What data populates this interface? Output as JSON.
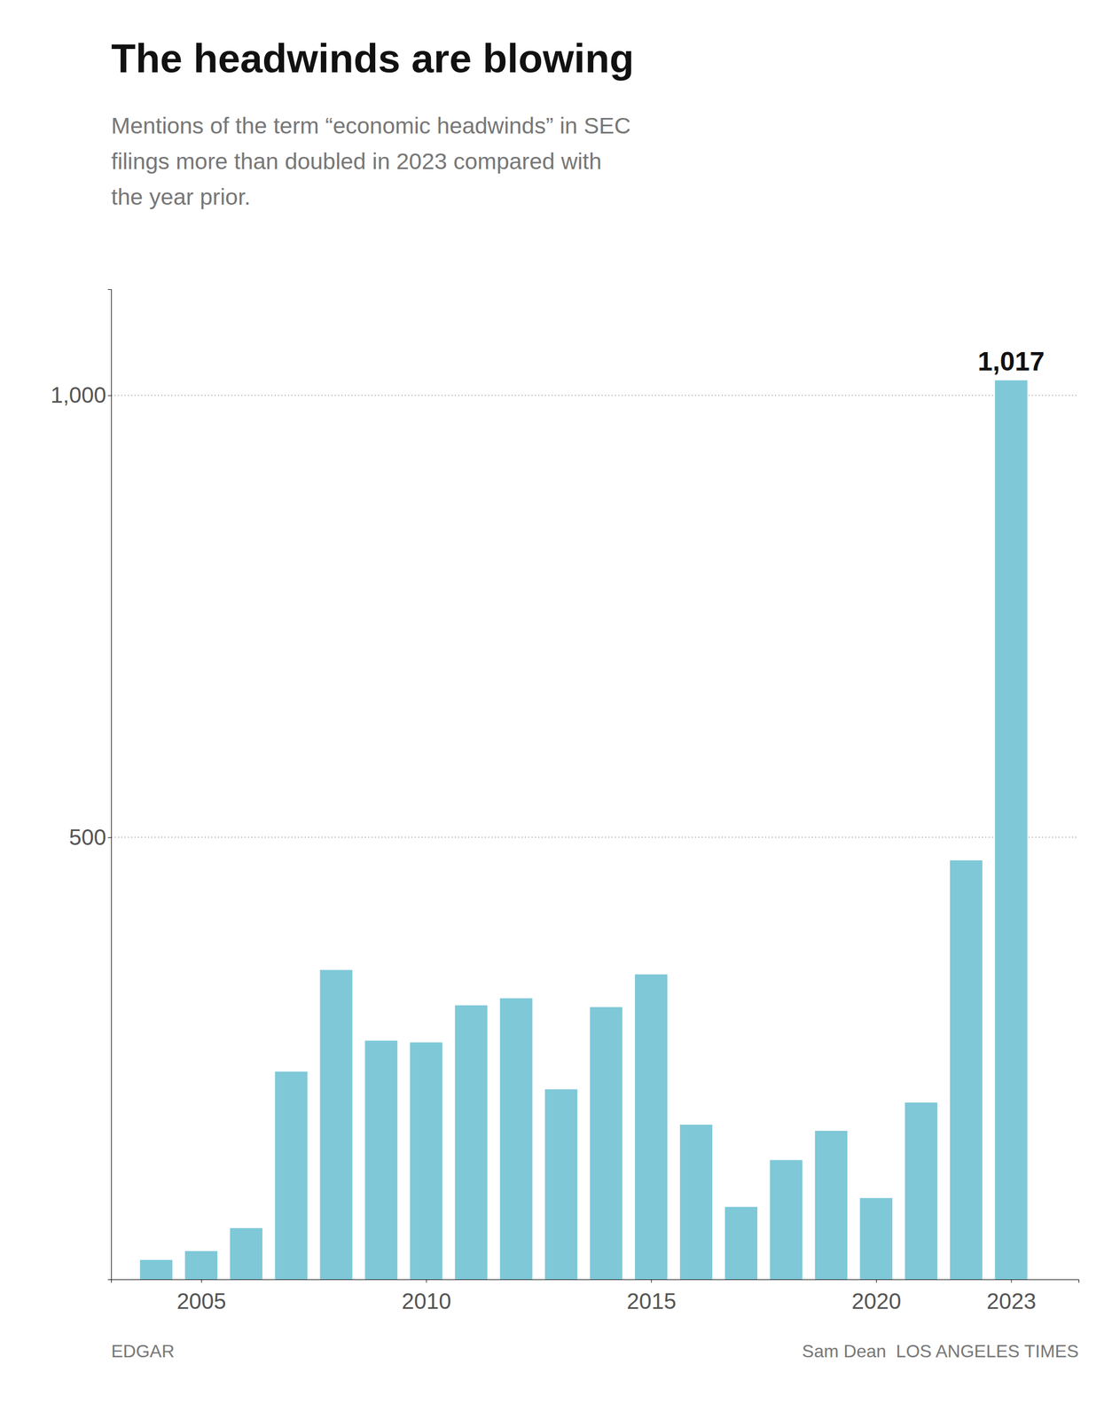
{
  "chart_data": {
    "type": "bar",
    "title": "The headwinds are blowing",
    "subtitle": "Mentions of the term “economic headwinds” in SEC\nfilings more than doubled in 2023 compared with\nthe year prior.",
    "x": [
      2004,
      2005,
      2006,
      2007,
      2008,
      2009,
      2010,
      2011,
      2012,
      2013,
      2014,
      2015,
      2016,
      2017,
      2018,
      2019,
      2020,
      2021,
      2022,
      2023
    ],
    "values": [
      22,
      32,
      58,
      235,
      350,
      270,
      268,
      310,
      318,
      215,
      308,
      345,
      175,
      82,
      135,
      168,
      92,
      200,
      474,
      1017
    ],
    "color": "#7EC8D8",
    "xlim": [
      2003.0,
      2024.5
    ],
    "xticks": [
      2005,
      2010,
      2015,
      2020,
      2023
    ],
    "ylim": [
      0,
      1120
    ],
    "yticks": [
      500,
      {
        "value": 1000,
        "label": "1,000"
      }
    ],
    "grid": true,
    "annotations": [
      {
        "text": "1,017",
        "x": 2023,
        "y": 1017
      }
    ],
    "source": "EDGAR",
    "credit": "Sam Dean  LOS ANGELES TIMES"
  }
}
